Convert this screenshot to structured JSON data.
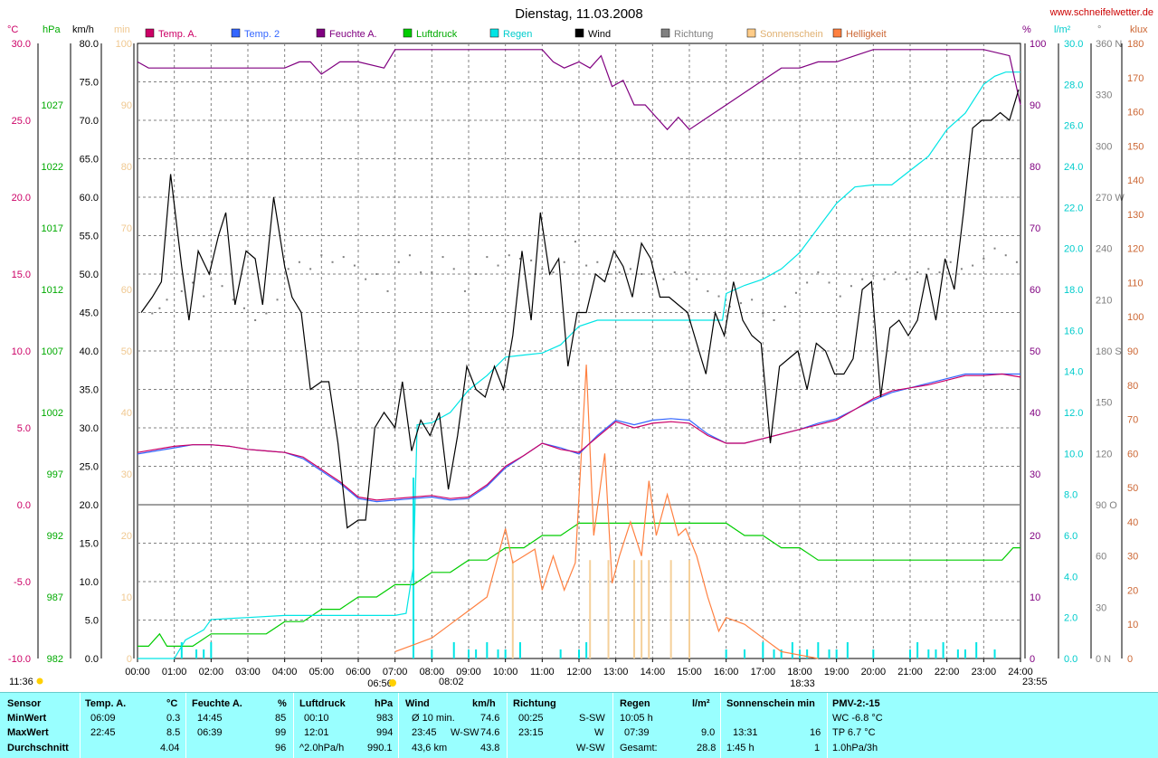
{
  "header": {
    "title": "Dienstag, 11.03.2008",
    "website": "www.schneifelwetter.de"
  },
  "units": {
    "temp": "°C",
    "pressure": "hPa",
    "wind": "km/h",
    "sun": "min",
    "humidity": "%",
    "rain": "l/m²",
    "direction": "°",
    "brightness": "klux"
  },
  "legend": [
    {
      "label": "Temp. A.",
      "color": "#cc0066"
    },
    {
      "label": "Temp. 2",
      "color": "#3366ff"
    },
    {
      "label": "Feuchte A.",
      "color": "#800080"
    },
    {
      "label": "Luftdruck",
      "color": "#00cc00"
    },
    {
      "label": "Regen",
      "color": "#00e5e5"
    },
    {
      "label": "Wind",
      "color": "#000000"
    },
    {
      "label": "Richtung",
      "color": "#808080"
    },
    {
      "label": "Sonnenschein",
      "color": "#ffcc88"
    },
    {
      "label": "Helligkeit",
      "color": "#ff8040"
    }
  ],
  "axes": {
    "temp_ticks": [
      "30.0",
      "25.0",
      "20.0",
      "15.0",
      "10.0",
      "5.0",
      "0.0",
      "-5.0",
      "-10.0"
    ],
    "pressure_ticks": [
      "1027",
      "1022",
      "1017",
      "1012",
      "1007",
      "1002",
      "997",
      "992",
      "987",
      "982"
    ],
    "wind_ticks": [
      "80.0",
      "75.0",
      "70.0",
      "65.0",
      "60.0",
      "55.0",
      "50.0",
      "45.0",
      "40.0",
      "35.0",
      "30.0",
      "25.0",
      "20.0",
      "15.0",
      "10.0",
      "5.0",
      "0.0"
    ],
    "sun_ticks": [
      "100",
      "90",
      "80",
      "70",
      "60",
      "50",
      "40",
      "30",
      "20",
      "10",
      "0"
    ],
    "humidity_ticks": [
      "100",
      "90",
      "80",
      "70",
      "60",
      "50",
      "40",
      "30",
      "20",
      "10",
      "0"
    ],
    "rain_ticks": [
      "30.0",
      "28.0",
      "26.0",
      "24.0",
      "22.0",
      "20.0",
      "18.0",
      "16.0",
      "14.0",
      "12.0",
      "10.0",
      "8.0",
      "6.0",
      "4.0",
      "2.0",
      "0.0"
    ],
    "direction_ticks": [
      "360 N",
      "330",
      "300",
      "270 W",
      "240",
      "210",
      "180 S",
      "150",
      "120",
      "90 O",
      "60",
      "30",
      "0 N"
    ],
    "brightness_ticks": [
      "180",
      "170",
      "160",
      "150",
      "140",
      "130",
      "120",
      "110",
      "100",
      "90",
      "80",
      "70",
      "60",
      "50",
      "40",
      "30",
      "20",
      "10",
      "0"
    ],
    "time_ticks": [
      "00:00",
      "01:00",
      "02:00",
      "03:00",
      "04:00",
      "05:00",
      "06:00",
      "07:00",
      "08:00",
      "09:00",
      "10:00",
      "11:00",
      "12:00",
      "13:00",
      "14:00",
      "15:00",
      "16:00",
      "17:00",
      "18:00",
      "19:00",
      "20:00",
      "21:00",
      "22:00",
      "23:00",
      "24:00"
    ]
  },
  "sun_markers": {
    "sunrise": "06:56",
    "sunset": "18:33",
    "moonrise": "11:36",
    "moonset": "23:55",
    "transit": "08:02"
  },
  "chart_data": {
    "type": "line",
    "title": "Dienstag, 11.03.2008",
    "x_hours_range": [
      0,
      24
    ],
    "series": [
      {
        "name": "Wind",
        "axis": "wind",
        "x": [
          0.1,
          0.4,
          0.65,
          0.9,
          1.2,
          1.4,
          1.65,
          1.95,
          2.2,
          2.4,
          2.65,
          2.95,
          3.2,
          3.4,
          3.7,
          4.0,
          4.2,
          4.45,
          4.7,
          5.0,
          5.2,
          5.45,
          5.7,
          6.0,
          6.2,
          6.45,
          6.7,
          7.0,
          7.2,
          7.45,
          7.7,
          7.95,
          8.2,
          8.45,
          8.7,
          8.95,
          9.2,
          9.45,
          9.7,
          9.95,
          10.2,
          10.45,
          10.7,
          10.95,
          11.2,
          11.45,
          11.7,
          11.95,
          12.2,
          12.45,
          12.7,
          12.95,
          13.2,
          13.45,
          13.7,
          13.95,
          14.2,
          14.45,
          14.7,
          14.95,
          15.2,
          15.45,
          15.7,
          15.95,
          16.2,
          16.45,
          16.7,
          16.95,
          17.2,
          17.45,
          17.7,
          17.95,
          18.2,
          18.45,
          18.7,
          18.95,
          19.2,
          19.45,
          19.7,
          19.95,
          20.2,
          20.45,
          20.7,
          20.95,
          21.2,
          21.45,
          21.7,
          21.95,
          22.2,
          22.45,
          22.7,
          22.95,
          23.2,
          23.45,
          23.7,
          23.95
        ],
        "values": [
          45,
          47,
          49,
          63,
          51,
          44,
          53,
          50,
          55,
          58,
          46,
          53,
          52,
          46,
          60,
          51,
          47,
          45,
          35,
          36,
          36,
          28,
          17,
          18,
          18,
          30,
          32,
          30,
          36,
          27,
          31,
          29,
          32,
          22,
          29,
          38,
          35,
          34,
          38,
          35,
          42,
          53,
          44,
          58,
          50,
          52,
          38,
          45,
          45,
          50,
          49,
          53,
          51,
          47,
          54,
          52,
          47,
          47,
          46,
          45,
          41,
          37,
          45,
          42,
          49,
          44,
          42,
          41,
          28,
          38,
          39,
          40,
          35,
          41,
          40,
          37,
          37,
          39,
          48,
          49,
          34,
          43,
          44,
          42,
          44,
          50,
          44,
          52,
          48,
          58,
          69,
          70,
          70,
          71,
          70,
          74
        ]
      },
      {
        "name": "Temp. A.",
        "axis": "temp",
        "x": [
          0,
          1,
          1.5,
          2,
          2.5,
          3,
          3.5,
          4,
          4.5,
          5,
          5.5,
          6,
          6.5,
          7,
          7.5,
          8,
          8.5,
          9,
          9.5,
          10,
          10.5,
          11,
          11.5,
          12,
          12.5,
          13,
          13.5,
          14,
          14.5,
          15,
          15.5,
          16,
          16.5,
          17,
          17.5,
          18,
          18.5,
          19,
          19.5,
          20,
          20.5,
          21,
          21.5,
          22,
          22.5,
          23,
          23.5,
          24
        ],
        "values": [
          3.4,
          3.8,
          3.9,
          3.9,
          3.8,
          3.6,
          3.5,
          3.4,
          3.1,
          2.3,
          1.5,
          0.5,
          0.3,
          0.4,
          0.5,
          0.6,
          0.4,
          0.5,
          1.3,
          2.5,
          3.2,
          4.0,
          3.6,
          3.4,
          4.4,
          5.4,
          5.0,
          5.3,
          5.4,
          5.3,
          4.5,
          4.0,
          4.0,
          4.3,
          4.6,
          4.9,
          5.2,
          5.5,
          6.2,
          6.9,
          7.4,
          7.6,
          7.8,
          8.1,
          8.4,
          8.4,
          8.5,
          8.3
        ]
      },
      {
        "name": "Temp. 2",
        "axis": "temp",
        "x": [
          0,
          1,
          1.5,
          2,
          2.5,
          3,
          3.5,
          4,
          4.5,
          5,
          5.5,
          6,
          6.5,
          7,
          7.5,
          8,
          8.5,
          9,
          9.5,
          10,
          10.5,
          11,
          11.5,
          12,
          12.5,
          13,
          13.5,
          14,
          14.5,
          15,
          15.5,
          16,
          16.5,
          17,
          17.5,
          18,
          18.5,
          19,
          19.5,
          20,
          20.5,
          21,
          21.5,
          22,
          22.5,
          23,
          23.5,
          24
        ],
        "values": [
          3.3,
          3.7,
          3.9,
          3.9,
          3.8,
          3.6,
          3.5,
          3.4,
          3.0,
          2.2,
          1.4,
          0.4,
          0.2,
          0.3,
          0.4,
          0.5,
          0.3,
          0.4,
          1.2,
          2.4,
          3.2,
          4.0,
          3.7,
          3.3,
          4.5,
          5.5,
          5.2,
          5.5,
          5.6,
          5.5,
          4.6,
          4.0,
          4.0,
          4.3,
          4.6,
          4.9,
          5.3,
          5.6,
          6.2,
          6.8,
          7.3,
          7.6,
          7.9,
          8.2,
          8.5,
          8.5,
          8.5,
          8.5
        ]
      },
      {
        "name": "Feuchte A.",
        "axis": "humidity",
        "x": [
          0,
          0.3,
          1,
          2,
          3,
          4,
          4.4,
          4.7,
          5,
          5.5,
          6,
          6.7,
          7,
          8,
          9,
          10,
          11,
          11.3,
          11.6,
          12,
          12.3,
          12.6,
          12.9,
          13.2,
          13.5,
          13.8,
          14.1,
          14.4,
          14.7,
          15,
          15.5,
          16,
          16.5,
          17,
          17.5,
          18,
          18.5,
          19,
          19.5,
          20,
          21,
          22,
          23,
          23.7,
          24
        ],
        "values": [
          97,
          96,
          96,
          96,
          96,
          96,
          97,
          97,
          95,
          97,
          97,
          96,
          99,
          99,
          99,
          99,
          99,
          97,
          96,
          97,
          96,
          98,
          93,
          94,
          90,
          90,
          88,
          86,
          88,
          86,
          88,
          90,
          92,
          94,
          96,
          96,
          97,
          97,
          98,
          99,
          99,
          99,
          99,
          98,
          90
        ]
      },
      {
        "name": "Luftdruck",
        "axis": "pressure",
        "x": [
          0,
          0.3,
          0.6,
          0.8,
          1,
          1.5,
          2,
          2.5,
          3,
          3.5,
          4,
          4.5,
          5,
          5.5,
          6,
          6.5,
          7,
          7.5,
          8,
          8.5,
          9,
          9.5,
          10,
          10.5,
          11,
          11.5,
          12,
          13,
          14,
          15,
          16,
          16.5,
          17,
          17.5,
          18,
          18.5,
          19,
          19.5,
          20,
          21,
          22,
          23,
          23.5,
          23.8,
          24
        ],
        "values": [
          983,
          983,
          984,
          983,
          983,
          983,
          984,
          984,
          984,
          984,
          985,
          985,
          986,
          986,
          987,
          987,
          988,
          988,
          989,
          989,
          990,
          990,
          991,
          991,
          992,
          992,
          993,
          993,
          993,
          993,
          993,
          992,
          992,
          991,
          991,
          990,
          990,
          990,
          990,
          990,
          990,
          990,
          990,
          991,
          991
        ]
      },
      {
        "name": "Regen",
        "axis": "rain",
        "x": [
          0,
          1,
          1.3,
          1.8,
          2,
          3,
          4,
          5,
          6,
          7,
          7.3,
          7.5,
          7.6,
          8,
          8.5,
          9,
          9.5,
          10,
          10.5,
          11,
          11.5,
          12,
          12.5,
          13,
          14,
          15,
          15.9,
          16,
          16.5,
          17,
          17.5,
          18,
          18.5,
          19,
          19.5,
          20,
          20.5,
          21,
          21.5,
          22,
          22.5,
          23,
          23.3,
          23.6,
          24
        ],
        "values": [
          0,
          0,
          0.9,
          1.4,
          1.9,
          2.0,
          2.1,
          2.1,
          2.1,
          2.1,
          2.2,
          4.5,
          11.4,
          11.5,
          12.0,
          13.1,
          13.8,
          14.7,
          14.8,
          14.9,
          15.3,
          16.2,
          16.5,
          16.5,
          16.5,
          16.5,
          16.5,
          17.8,
          18.2,
          18.5,
          19.0,
          19.8,
          21.0,
          22.2,
          23.0,
          23.1,
          23.1,
          23.8,
          24.5,
          25.8,
          26.6,
          28.0,
          28.4,
          28.6,
          28.6
        ]
      },
      {
        "name": "Helligkeit",
        "axis": "brightness",
        "x": [
          7,
          7.5,
          8,
          8.5,
          9,
          9.5,
          10,
          10.2,
          10.5,
          10.8,
          11,
          11.3,
          11.6,
          11.9,
          12.2,
          12.4,
          12.7,
          12.9,
          13.1,
          13.4,
          13.7,
          13.9,
          14.1,
          14.4,
          14.7,
          14.9,
          15.2,
          15.5,
          15.8,
          16,
          16.5,
          17,
          17.5,
          18,
          18.5
        ],
        "values": [
          2,
          4,
          6,
          10,
          14,
          18,
          38,
          28,
          30,
          32,
          20,
          30,
          20,
          28,
          86,
          36,
          60,
          22,
          30,
          40,
          30,
          52,
          36,
          48,
          36,
          38,
          30,
          18,
          8,
          12,
          10,
          6,
          2,
          1,
          0
        ]
      }
    ],
    "rain_bars_hours": [
      1.2,
      1.6,
      1.8,
      2.0,
      7.5,
      8.0,
      8.6,
      9.0,
      9.2,
      9.5,
      9.8,
      10.0,
      10.4,
      11.5,
      12.0,
      12.2,
      16.0,
      16.5,
      17.0,
      17.3,
      17.5,
      17.8,
      18.0,
      18.2,
      18.5,
      18.8,
      19.0,
      19.3,
      20.0,
      21.0,
      21.2,
      21.5,
      21.7,
      21.9,
      22.3,
      22.5,
      22.8,
      23.3
    ],
    "sun_bars_hours": [
      10.2,
      12.3,
      12.8,
      13.5,
      13.7,
      13.9,
      14.5,
      15.0
    ],
    "direction_dots": {
      "x": [
        0.4,
        0.6,
        0.8,
        1.2,
        1.5,
        1.8,
        2.0,
        2.3,
        2.6,
        2.9,
        3.2,
        3.5,
        3.8,
        4.1,
        4.4,
        4.7,
        5.0,
        5.3,
        5.6,
        5.9,
        6.2,
        6.5,
        6.8,
        7.1,
        7.4,
        7.7,
        8.0,
        8.3,
        8.6,
        8.9,
        9.2,
        9.5,
        9.8,
        10.1,
        10.4,
        10.7,
        11.0,
        11.3,
        11.6,
        11.9,
        12.2,
        12.5,
        12.8,
        13.1,
        13.4,
        13.7,
        14.0,
        14.3,
        14.6,
        14.9,
        15.2,
        15.5,
        15.8,
        16.1,
        16.4,
        16.7,
        17.0,
        17.3,
        17.6,
        17.9,
        18.2,
        18.5,
        18.8,
        19.1,
        19.4,
        19.7,
        20.0,
        20.3,
        20.6,
        20.9,
        21.2,
        21.5,
        21.8,
        22.1,
        22.4,
        22.7,
        23.0,
        23.3,
        23.6,
        23.9
      ],
      "values": [
        202,
        205,
        210,
        215,
        220,
        212,
        222,
        218,
        210,
        205,
        198,
        202,
        210,
        228,
        232,
        228,
        236,
        232,
        235,
        230,
        222,
        225,
        215,
        232,
        236,
        226,
        226,
        235,
        228,
        215,
        225,
        235,
        230,
        236,
        234,
        233,
        228,
        226,
        232,
        244,
        230,
        232,
        225,
        226,
        228,
        225,
        226,
        222,
        226,
        226,
        222,
        215,
        212,
        206,
        208,
        210,
        202,
        198,
        206,
        214,
        220,
        226,
        220,
        212,
        218,
        222,
        224,
        222,
        226,
        222,
        226,
        228,
        226,
        232,
        228,
        230,
        234,
        240,
        236,
        232
      ]
    },
    "ylims": {
      "temp": [
        -10,
        30
      ],
      "pressure": [
        982,
        1032
      ],
      "wind": [
        0,
        80
      ],
      "sun": [
        0,
        100
      ],
      "humidity": [
        0,
        100
      ],
      "rain": [
        0,
        30
      ],
      "direction": [
        0,
        360
      ],
      "brightness": [
        0,
        180
      ]
    },
    "grid": true
  },
  "summary": {
    "sensor": {
      "label": "Sensor",
      "rows": [
        "MinWert",
        "MaxWert",
        "Durchschnitt"
      ]
    },
    "temp": {
      "header": "Temp. A.",
      "unit": "°C",
      "min_time": "06:09",
      "min": "0.3",
      "max_time": "22:45",
      "max": "8.5",
      "avg": "4.04"
    },
    "humidity": {
      "header": "Feuchte A.",
      "unit": "%",
      "min_time": "14:45",
      "min": "85",
      "max_time": "06:39",
      "max": "99",
      "avg": "96"
    },
    "pressure": {
      "header": "Luftdruck",
      "unit": "hPa",
      "min_time": "00:10",
      "min": "983",
      "max_time": "12:01",
      "max": "994",
      "trend": "^2.0hPa/h",
      "avg": "990.1"
    },
    "wind": {
      "header": "Wind",
      "unit": "km/h",
      "row1_label": "Ø 10 min.",
      "row1": "74.6",
      "row2_time": "23:45",
      "row2_dir": "W-SW",
      "row2": "74.6",
      "row3_label": "43,6 km",
      "row3": "43.8"
    },
    "direction": {
      "header": "Richtung",
      "row1_time": "00:25",
      "row1": "S-SW",
      "row2_time": "23:15",
      "row2": "W",
      "row3": "W-SW"
    },
    "rain": {
      "header": "Regen",
      "unit": "l/m²",
      "row1": "10:05 h",
      "row2_time": "07:39",
      "row2": "9.0",
      "row3_label": "Gesamt:",
      "row3": "28.8"
    },
    "sun": {
      "header": "Sonnenschein min",
      "row2_time": "13:31",
      "row2": "16",
      "row3_label": "1:45 h",
      "row3": "1"
    },
    "pmv": {
      "header": "PMV-2:-15",
      "row1": "WC -6.8 °C",
      "row2": "TP 6.7 °C",
      "row3": "1.0hPa/3h"
    }
  }
}
